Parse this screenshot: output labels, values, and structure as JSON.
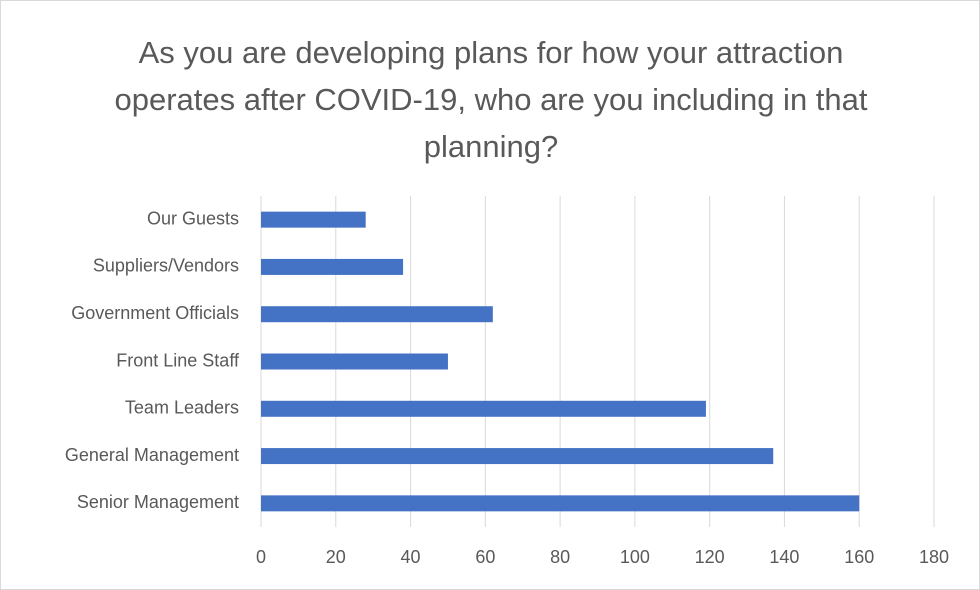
{
  "chart_data": {
    "type": "bar",
    "orientation": "horizontal",
    "title": "As you are developing plans for how your attraction operates after COVID-19, who are you including in that planning?",
    "categories": [
      "Our Guests",
      "Suppliers/Vendors",
      "Government Officials",
      "Front Line Staff",
      "Team Leaders",
      "General Management",
      "Senior Management"
    ],
    "values": [
      28,
      38,
      62,
      50,
      119,
      137,
      160
    ],
    "color": "#4472c4",
    "xlim": [
      0,
      180
    ],
    "xticks": [
      0,
      20,
      40,
      60,
      80,
      100,
      120,
      140,
      160,
      180
    ],
    "grid": true
  }
}
